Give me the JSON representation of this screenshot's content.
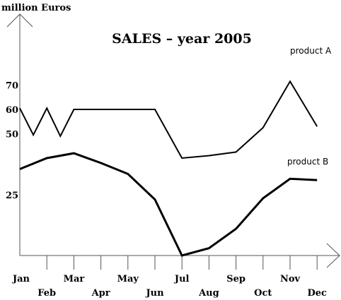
{
  "chart_data": {
    "type": "line",
    "title": "SALES – year 2005",
    "ylabel": "million Euros",
    "xlabel": "",
    "ylim": [
      0,
      70
    ],
    "yticks": [
      "25",
      "50",
      "60",
      "70"
    ],
    "categories": [
      "Jan",
      "Feb",
      "Mar",
      "Apr",
      "May",
      "Jun",
      "Jul",
      "Aug",
      "Sep",
      "Oct",
      "Nov",
      "Dec"
    ],
    "series": [
      {
        "name": "product A",
        "points": [
          {
            "x": "Jan",
            "y": 60.5
          },
          {
            "x": "Jan–Feb",
            "y": 49.5
          },
          {
            "x": "Feb",
            "y": 60.5
          },
          {
            "x": "Feb–Mar",
            "y": 49
          },
          {
            "x": "Mar",
            "y": 60
          },
          {
            "x": "May",
            "y": 60
          },
          {
            "x": "Jun",
            "y": 60
          },
          {
            "x": "Jul",
            "y": 40
          },
          {
            "x": "Aug",
            "y": 41
          },
          {
            "x": "Sep",
            "y": 42.5
          },
          {
            "x": "Oct",
            "y": 52.5
          },
          {
            "x": "Nov",
            "y": 71.5
          },
          {
            "x": "Dec",
            "y": 53
          }
        ]
      },
      {
        "name": "product B",
        "points": [
          {
            "x": "Jan",
            "y": 35.5
          },
          {
            "x": "Feb",
            "y": 40
          },
          {
            "x": "Mar",
            "y": 42
          },
          {
            "x": "Apr",
            "y": 38
          },
          {
            "x": "May",
            "y": 33.5
          },
          {
            "x": "Jun",
            "y": 23
          },
          {
            "x": "Jul",
            "y": 0
          },
          {
            "x": "Aug",
            "y": 3
          },
          {
            "x": "Sep",
            "y": 11
          },
          {
            "x": "Oct",
            "y": 23.5
          },
          {
            "x": "Nov",
            "y": 31.5
          },
          {
            "x": "Dec",
            "y": 31
          }
        ]
      }
    ],
    "grid": false,
    "legend": "inline labels near line ends"
  },
  "colors": {
    "line": "#000000",
    "axis": "#555555",
    "text": "#000000"
  }
}
